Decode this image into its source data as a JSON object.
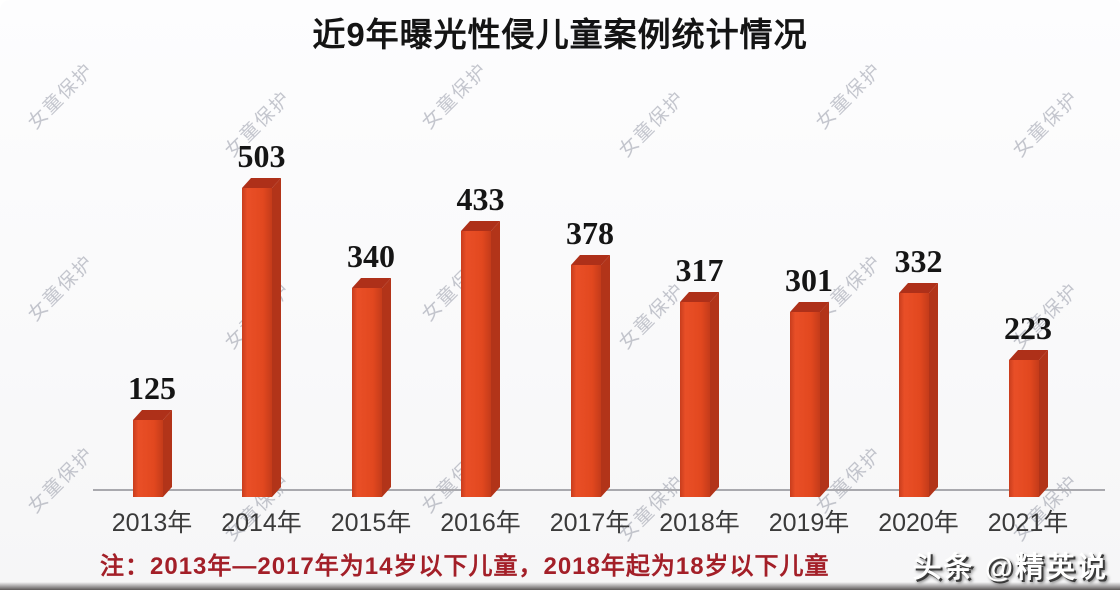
{
  "title": "近9年曝光性侵儿童案例统计情况",
  "chart_data": {
    "type": "bar",
    "title": "近9年曝光性侵儿童案例统计情况",
    "categories": [
      "2013年",
      "2014年",
      "2015年",
      "2016年",
      "2017年",
      "2018年",
      "2019年",
      "2020年",
      "2021年"
    ],
    "values": [
      125,
      503,
      340,
      433,
      378,
      317,
      301,
      332,
      223
    ],
    "xlabel": "",
    "ylabel": "",
    "ylim": [
      0,
      550
    ],
    "grid": false,
    "legend": false,
    "value_labels_shown": true,
    "bar_style": "3d-column",
    "bar_color_front": "#e2481f",
    "bar_color_top": "#ae3019",
    "bar_color_side": "#b23419",
    "axis_color": "#a9a9ae"
  },
  "footnote": {
    "text": "注：2013年—2017年为14岁以下儿童，2018年起为18岁以下儿童",
    "color": "#a31f28"
  },
  "watermark": {
    "text": "女童保护"
  },
  "brand": {
    "text": "头条 @精英说"
  }
}
